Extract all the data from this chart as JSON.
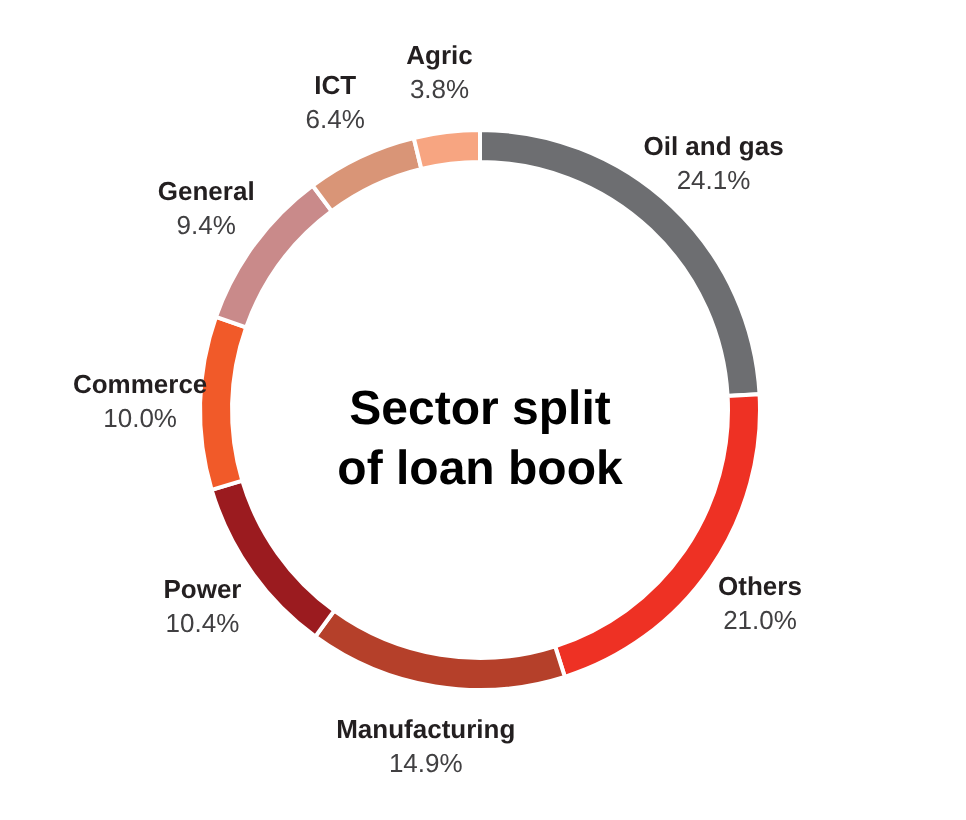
{
  "chart_data": {
    "type": "donut",
    "title": "Sector split of loan book",
    "categories": [
      "Oil and gas",
      "Others",
      "Manufacturing",
      "Power",
      "Commerce",
      "General",
      "ICT",
      "Agric"
    ],
    "values": [
      24.1,
      21.0,
      14.9,
      10.4,
      10.0,
      9.4,
      6.4,
      3.8
    ],
    "value_labels": [
      "24.1%",
      "21.0%",
      "14.9%",
      "10.4%",
      "10.0%",
      "9.4%",
      "6.4%",
      "3.8%"
    ],
    "colors": [
      "#6d6e71",
      "#ee3124",
      "#b5402a",
      "#9b1b1f",
      "#f15a29",
      "#c98a8a",
      "#d99577",
      "#f7a581"
    ]
  }
}
